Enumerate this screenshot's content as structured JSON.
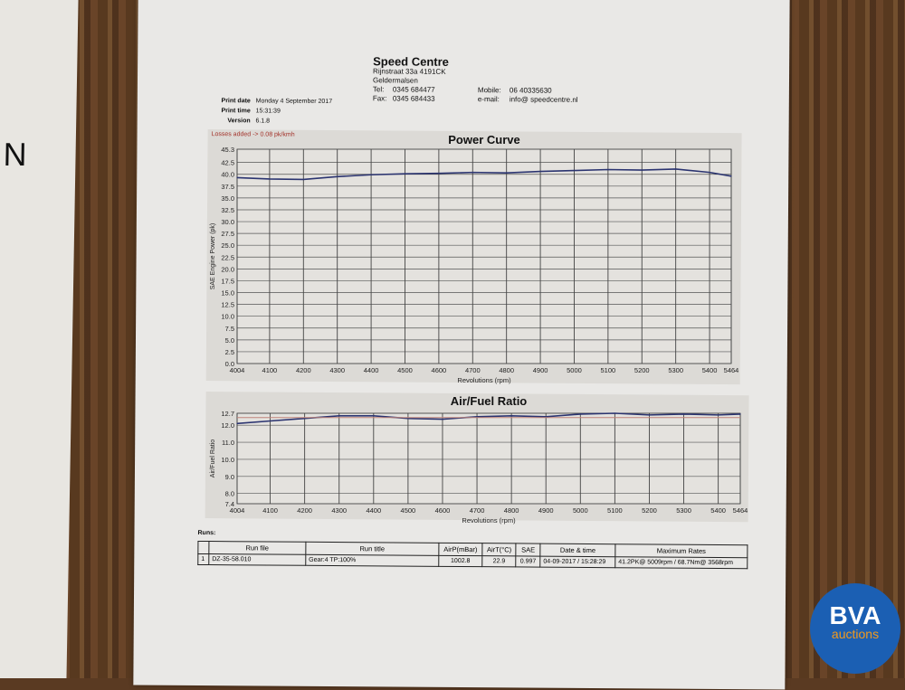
{
  "company": {
    "name": "Speed Centre",
    "address1": "Rijnstraat 33a 4191CK",
    "address2": "Geldermalsen",
    "tel_label": "Tel:",
    "tel": "0345 684477",
    "fax_label": "Fax:",
    "fax": "0345 684433",
    "mobile_label": "Mobile:",
    "mobile": "06 40335630",
    "email_label": "e-mail:",
    "email": "info@ speedcentre.nl"
  },
  "meta": {
    "print_date_label": "Print date",
    "print_date": "Monday 4 September 2017",
    "print_time_label": "Print time",
    "print_time": "15:31:39",
    "version_label": "Version",
    "version": "6.1.8"
  },
  "losses_note": "Losses added -> 0.08 pk/kmh",
  "chart_data": [
    {
      "type": "line",
      "title": "Power Curve",
      "xlabel": "Revolutions (rpm)",
      "ylabel": "SAE Engine Power (pk)",
      "xlim": [
        4004,
        5464
      ],
      "ylim": [
        0,
        45.3
      ],
      "grid": true,
      "x_ticks": [
        "4004",
        "4100",
        "4200",
        "4300",
        "4400",
        "4500",
        "4600",
        "4700",
        "4800",
        "4900",
        "5000",
        "5100",
        "5200",
        "5300",
        "5400",
        "5464"
      ],
      "y_ticks": [
        "0.0",
        "2.5",
        "5.0",
        "7.5",
        "10.0",
        "12.5",
        "15.0",
        "17.5",
        "20.0",
        "22.5",
        "25.0",
        "27.5",
        "30.0",
        "32.5",
        "35.0",
        "37.5",
        "40.0",
        "42.5",
        "45.3"
      ],
      "series": [
        {
          "color": "#2b3470",
          "x": [
            4004,
            4100,
            4200,
            4300,
            4400,
            4500,
            4600,
            4700,
            4800,
            4900,
            5000,
            5100,
            5200,
            5300,
            5400,
            5464
          ],
          "y": [
            39.3,
            39.0,
            38.9,
            39.5,
            39.9,
            40.1,
            40.2,
            40.4,
            40.3,
            40.6,
            40.8,
            41.0,
            40.9,
            41.1,
            40.4,
            39.6
          ]
        }
      ]
    },
    {
      "type": "line",
      "title": "Air/Fuel Ratio",
      "xlabel": "Revolutions (rpm)",
      "ylabel": "Air/Fuel Ratio",
      "xlim": [
        4004,
        5464
      ],
      "ylim": [
        7.4,
        12.7
      ],
      "grid": true,
      "x_ticks": [
        "4004",
        "4100",
        "4200",
        "4300",
        "4400",
        "4500",
        "4600",
        "4700",
        "4800",
        "4900",
        "5000",
        "5100",
        "5200",
        "5300",
        "5400",
        "5464"
      ],
      "y_ticks": [
        "7.4",
        "8.0",
        "9.0",
        "10.0",
        "11.0",
        "12.0",
        "12.7"
      ],
      "series": [
        {
          "color": "#2b3470",
          "x": [
            4004,
            4100,
            4200,
            4300,
            4400,
            4500,
            4600,
            4700,
            4800,
            4900,
            5000,
            5100,
            5200,
            5300,
            5400,
            5464
          ],
          "y": [
            12.1,
            12.25,
            12.4,
            12.55,
            12.55,
            12.4,
            12.35,
            12.5,
            12.55,
            12.5,
            12.65,
            12.7,
            12.6,
            12.65,
            12.6,
            12.65
          ]
        },
        {
          "color": "#c0837a",
          "x": [
            4004,
            5464
          ],
          "y": [
            12.45,
            12.45
          ]
        }
      ]
    }
  ],
  "runs": {
    "label": "Runs:",
    "headers": [
      "",
      "Run file",
      "Run title",
      "AirP(mBar)",
      "AirT(°C)",
      "SAE",
      "Date & time",
      "Maximum Rates"
    ],
    "rows": [
      [
        "1",
        "DZ-35-58.010",
        "Gear:4 TP:100%",
        "1002.8",
        "22.9",
        "0.997",
        "04-09-2017 / 15:28:29",
        "41.2PK@ 5009rpm / 68.7Nm@ 3568rpm"
      ]
    ]
  },
  "watermark": {
    "line1": "BVA",
    "line2": "auctions"
  }
}
